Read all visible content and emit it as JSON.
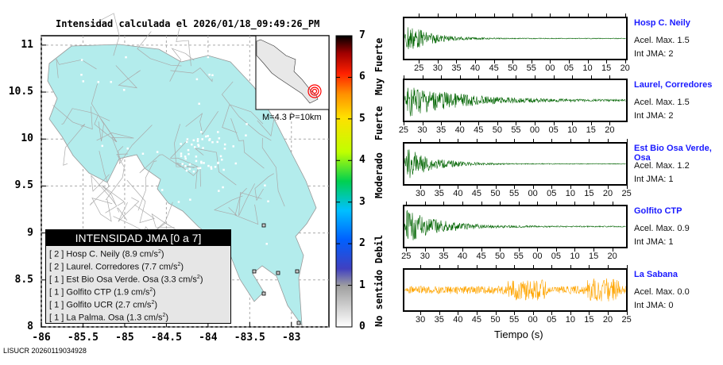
{
  "title": "Intensidad calculada el 2026/01/18_09:49:26_PM",
  "map": {
    "lat_ticks": [
      "11",
      "10.5",
      "10",
      "9.5",
      "9",
      "8.5",
      "8"
    ],
    "lon_ticks": [
      "-86",
      "-85.5",
      "-85",
      "-84.5",
      "-84",
      "-83.5",
      "-83"
    ],
    "lat_range": [
      8,
      11.1
    ],
    "lon_range": [
      -86,
      -82.55
    ],
    "land_color": "#b3ecec",
    "epicenter": {
      "lat": 8.6,
      "lon": -82.9
    },
    "inset_label": "M=4.3 P=10km"
  },
  "colorbar": {
    "ticks": [
      "0",
      "1",
      "2",
      "3",
      "4",
      "5",
      "6",
      "7"
    ],
    "labels": [
      "No sentido",
      "Debil",
      "Moderado",
      "Fuerte",
      "Muy Fuerte"
    ]
  },
  "legend": {
    "title": "INTENSIDAD JMA [0 a 7]",
    "rows": [
      {
        "level": "2",
        "name": "Hosp C. Neily",
        "acc": "8.9"
      },
      {
        "level": "2",
        "name": "Laurel. Corredores",
        "acc": "7.7"
      },
      {
        "level": "1",
        "name": "Est Bio Osa Verde. Osa",
        "acc": "3.3"
      },
      {
        "level": "1",
        "name": "Golfito CTP",
        "acc": "1.9"
      },
      {
        "level": "1",
        "name": "Golfito UCR",
        "acc": "2.7"
      },
      {
        "level": "1",
        "name": "La Palma. Osa",
        "acc": "1.3"
      }
    ],
    "unit": "cm/s",
    "unit_exp": "2"
  },
  "footer": "LISUCR 20260119034928",
  "seismograms": [
    {
      "name": "Hosp C. Neily",
      "acel": "Acel. Max. 1.5",
      "jma": "Int JMA: 2",
      "color": "#006400",
      "start_s": 20.7,
      "ticks": [
        "25",
        "30",
        "35",
        "40",
        "45",
        "50",
        "55",
        "00",
        "05",
        "10",
        "15",
        "20"
      ],
      "first_tick_s": 25,
      "decay": 6,
      "noise": 0.02
    },
    {
      "name": "Laurel, Corredores",
      "acel": "Acel. Max. 1.5",
      "jma": "Int JMA: 2",
      "color": "#006400",
      "start_s": 24.8,
      "ticks": [
        "25",
        "30",
        "35",
        "40",
        "45",
        "50",
        "55",
        "00",
        "05",
        "10",
        "15",
        "20"
      ],
      "first_tick_s": 25,
      "decay": 14,
      "noise": 0.04
    },
    {
      "name": "Est Bio Osa Verde, Osa",
      "acel": "Acel. Max. 1.2",
      "jma": "Int JMA: 1",
      "color": "#006400",
      "start_s": 25.3,
      "ticks": [
        "30",
        "35",
        "40",
        "45",
        "50",
        "55",
        "00",
        "05",
        "10",
        "15",
        "20",
        "25"
      ],
      "first_tick_s": 30,
      "decay": 7,
      "noise": 0.02
    },
    {
      "name": "Golfito CTP",
      "acel": "Acel. Max. 0.9",
      "jma": "Int JMA: 1",
      "color": "#006400",
      "start_s": 24.1,
      "ticks": [
        "25",
        "30",
        "35",
        "40",
        "45",
        "50",
        "55",
        "00",
        "05",
        "10",
        "15",
        "20"
      ],
      "first_tick_s": 25,
      "decay": 9,
      "noise": 0.03
    },
    {
      "name": "La Sabana",
      "acel": "Acel. Max. 0.0",
      "jma": "Int JMA: 0",
      "color": "#ffa500",
      "start_s": 25.3,
      "ticks": [
        "30",
        "35",
        "40",
        "45",
        "50",
        "55",
        "00",
        "05",
        "10",
        "15",
        "20",
        "25"
      ],
      "first_tick_s": 30,
      "decay": 0,
      "noise": 0.25
    }
  ],
  "xlabel": "Tiempo (s)"
}
